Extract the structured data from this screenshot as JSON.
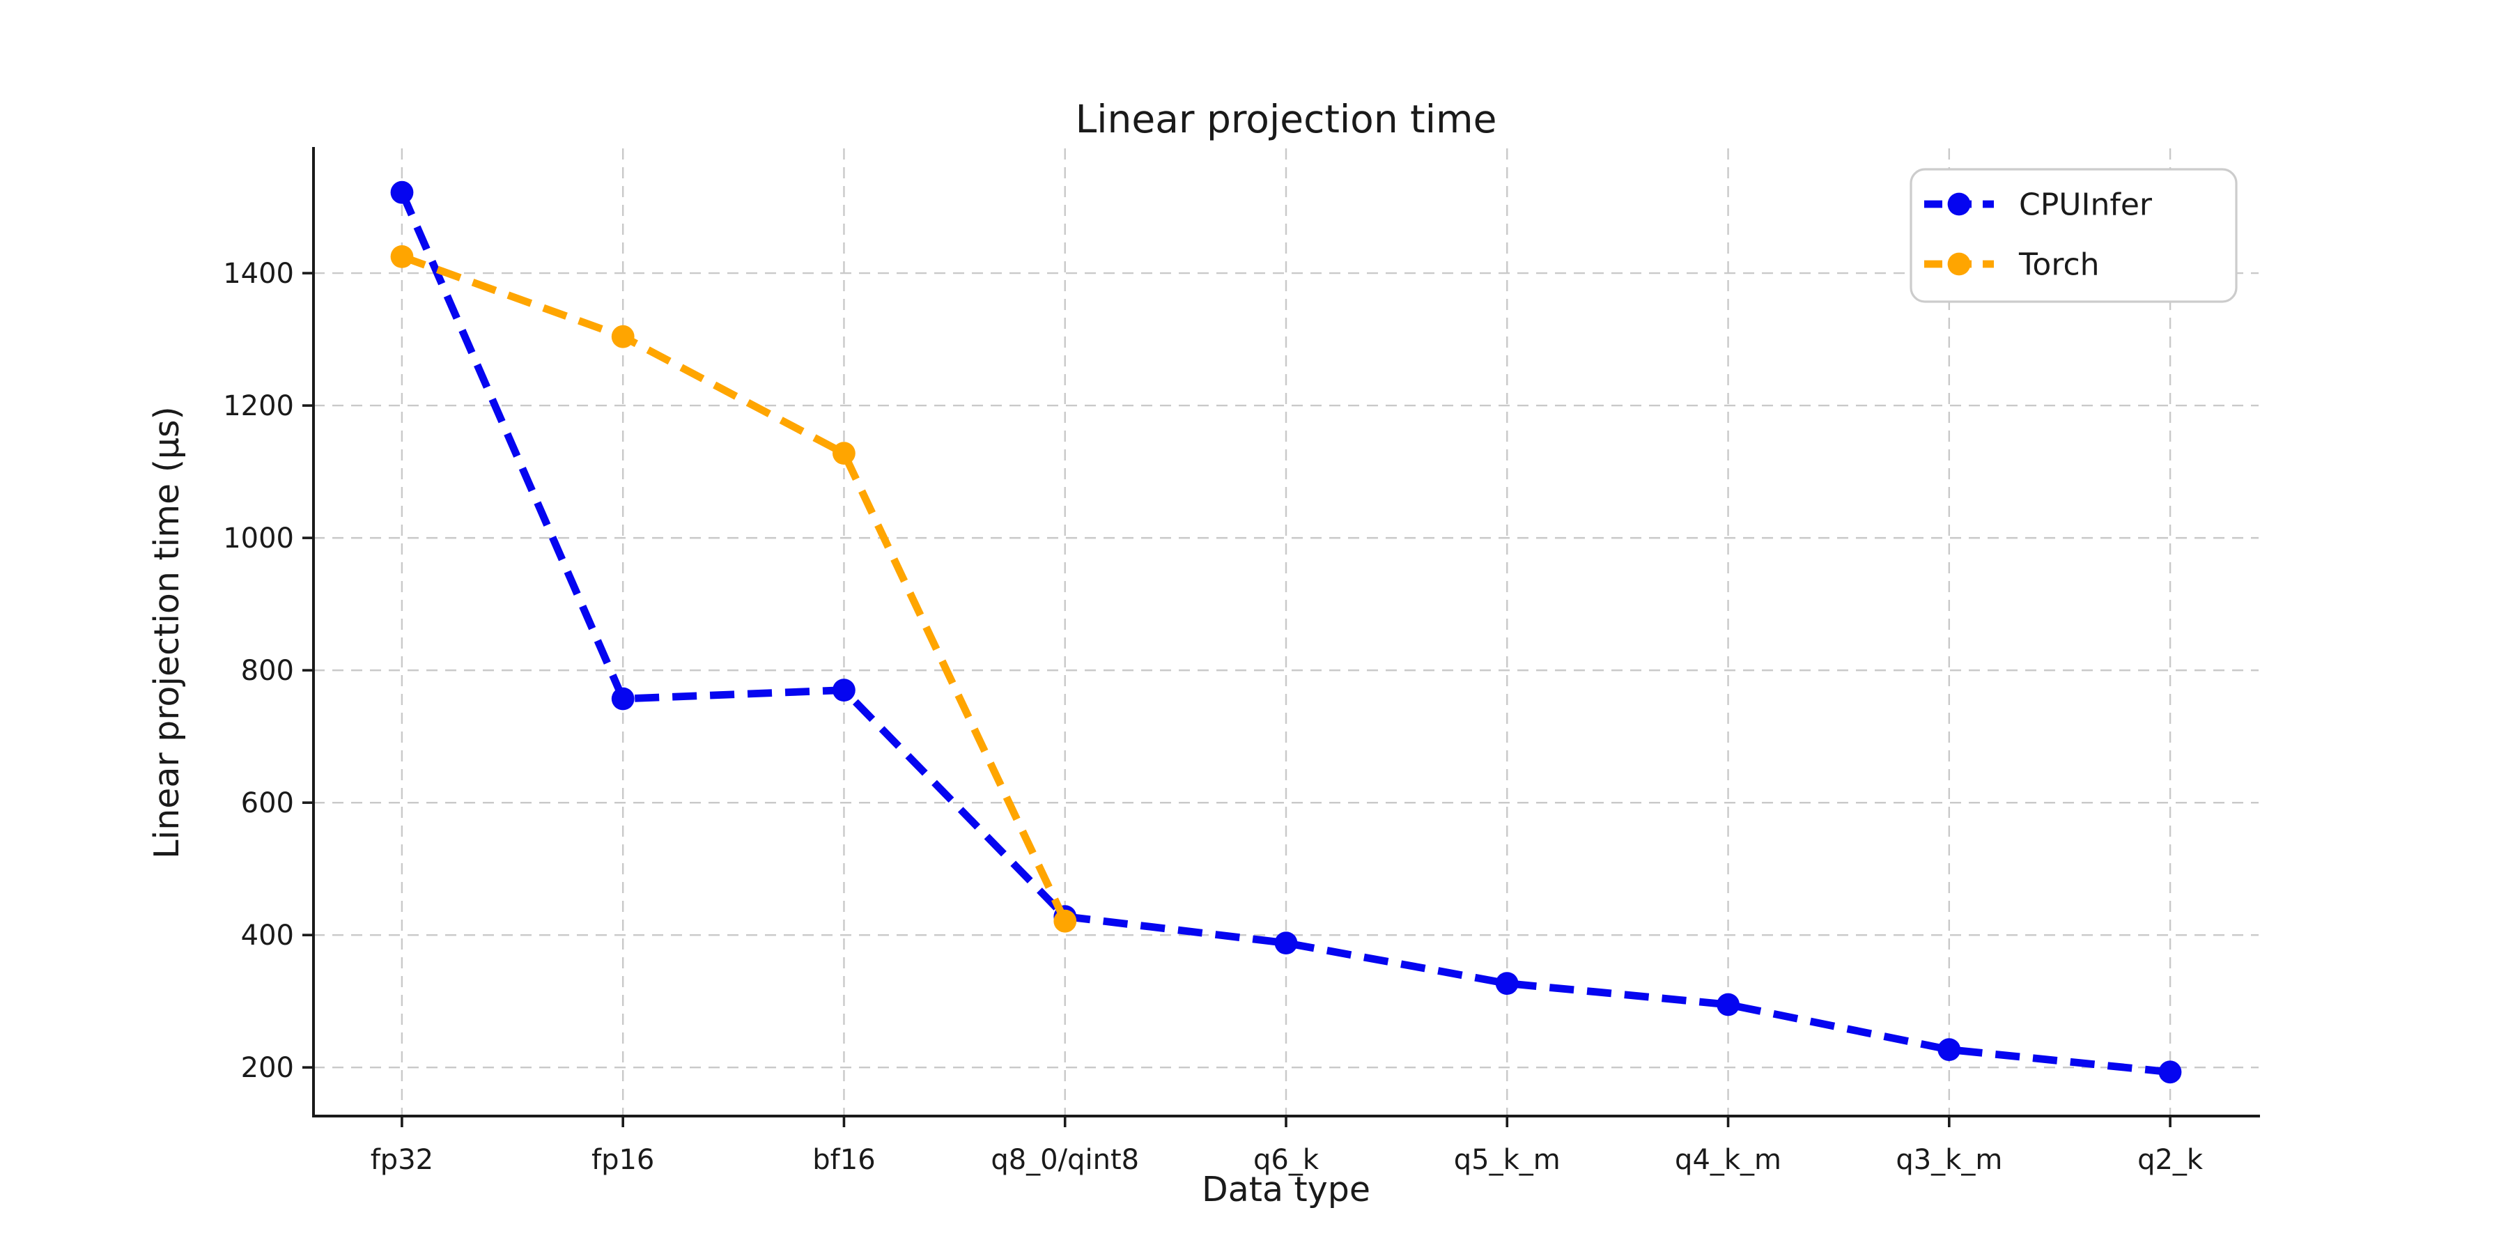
{
  "chart_data": {
    "type": "line",
    "title": "Linear projection time",
    "xlabel": "Data type",
    "ylabel": "Linear projection time (µs)",
    "categories": [
      "fp32",
      "fp16",
      "bf16",
      "q8_0/qint8",
      "q6_k",
      "q5_k_m",
      "q4_k_m",
      "q3_k_m",
      "q2_k"
    ],
    "series": [
      {
        "name": "CPUInfer",
        "color": "#0505f0",
        "line_style": "dashed",
        "marker": "circle",
        "values": [
          1522,
          757,
          770,
          428,
          388,
          327,
          295,
          227,
          193
        ]
      },
      {
        "name": "Torch",
        "color": "#ffa500",
        "line_style": "dashed",
        "marker": "circle",
        "values": [
          1425,
          1304,
          1128,
          421
        ]
      }
    ],
    "yticks": [
      200,
      400,
      600,
      800,
      1000,
      1200,
      1400
    ],
    "ylim": [
      126.5,
      1588.5
    ],
    "grid": true,
    "grid_color": "#c9c9c9",
    "legend_position": "upper right",
    "text_color": "#1a1a1a",
    "background": "#ffffff"
  }
}
